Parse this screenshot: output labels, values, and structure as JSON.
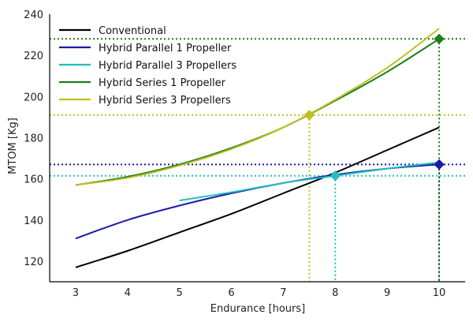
{
  "chart_data": {
    "type": "line",
    "xlabel": "Endurance [hours]",
    "ylabel": "MTOM [Kg]",
    "xlim": [
      2.5,
      10.5
    ],
    "ylim": [
      110,
      240
    ],
    "xticks": [
      3,
      4,
      5,
      6,
      7,
      8,
      9,
      10
    ],
    "yticks": [
      120,
      140,
      160,
      180,
      200,
      220,
      240
    ],
    "grid": false,
    "legend_position": "top-left",
    "series": [
      {
        "name": "Conventional",
        "color": "#000000",
        "x": [
          3,
          4,
          5,
          6,
          7,
          8,
          9,
          10
        ],
        "y": [
          117,
          125,
          134,
          143,
          153,
          163,
          174,
          185
        ]
      },
      {
        "name": "Hybrid Parallel 1 Propeller",
        "color": "#1a1aa8",
        "x": [
          3,
          4,
          5,
          6,
          7,
          8,
          9,
          10
        ],
        "y": [
          131,
          140,
          147,
          153,
          158,
          162,
          165,
          167
        ]
      },
      {
        "name": "Hybrid Parallel 3 Propellers",
        "color": "#22bfbf",
        "x": [
          5,
          6,
          7,
          8,
          9,
          10
        ],
        "y": [
          149.5,
          153.5,
          158,
          161.5,
          165,
          168
        ]
      },
      {
        "name": "Hybrid Series 1 Propeller",
        "color": "#1e7d1e",
        "x": [
          3,
          4,
          5,
          6,
          7,
          8,
          9,
          10
        ],
        "y": [
          157,
          161,
          167,
          175,
          185,
          198,
          212,
          228
        ]
      },
      {
        "name": "Hybrid Series 3 Propellers",
        "color": "#bfbf1e",
        "x": [
          3,
          4,
          5,
          6,
          7,
          8,
          9,
          10
        ],
        "y": [
          157,
          160.5,
          166.5,
          174.5,
          185,
          198.5,
          214,
          233
        ]
      }
    ],
    "markers": [
      {
        "x": 7.5,
        "y": 191,
        "color": "#bfbf1e"
      },
      {
        "x": 8,
        "y": 161.5,
        "color": "#22bfbf"
      },
      {
        "x": 10,
        "y": 167,
        "color": "#1a1aa8"
      },
      {
        "x": 10,
        "y": 228,
        "color": "#1e7d1e"
      }
    ]
  }
}
